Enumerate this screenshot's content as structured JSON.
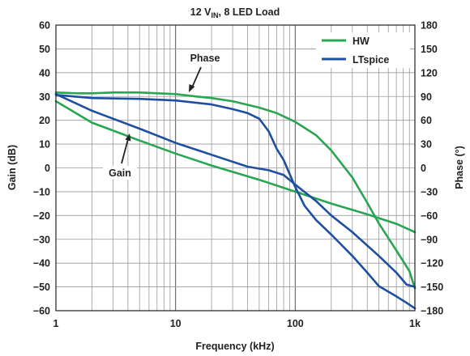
{
  "chart_data": {
    "type": "line",
    "title": "12 VIN, 8 LED Load",
    "title_parts": {
      "main": "12 V",
      "sub": "IN",
      "rest": ", 8 LED Load"
    },
    "xlabel": "Frequency (kHz)",
    "ylabel_left": "Gain (dB)",
    "ylabel_right": "Phase (°)",
    "x_scale": "log",
    "xlim": [
      1,
      1000
    ],
    "ylim_left": [
      -60,
      60
    ],
    "ylim_right": [
      -180,
      180
    ],
    "x_ticks": [
      {
        "value": 1,
        "label": "1"
      },
      {
        "value": 10,
        "label": "10"
      },
      {
        "value": 100,
        "label": "100"
      },
      {
        "value": 1000,
        "label": "1k"
      }
    ],
    "y_ticks_left": [
      "60",
      "50",
      "40",
      "30",
      "20",
      "10",
      "0",
      "−10",
      "−20",
      "−30",
      "−40",
      "−50",
      "−60"
    ],
    "y_tick_values_left": [
      60,
      50,
      40,
      30,
      20,
      10,
      0,
      -10,
      -20,
      -30,
      -40,
      -50,
      -60
    ],
    "y_ticks_right": [
      "180",
      "150",
      "120",
      "90",
      "60",
      "30",
      "0",
      "−30",
      "−60",
      "−90",
      "−120",
      "−150",
      "−180"
    ],
    "y_tick_values_right": [
      180,
      150,
      120,
      90,
      60,
      30,
      0,
      -30,
      -60,
      -90,
      -120,
      -150,
      -180
    ],
    "grid": true,
    "legend": {
      "placement": "top-right",
      "entries": [
        "HW",
        "LTspice"
      ]
    },
    "colors": {
      "HW": "#2aa552",
      "LTspice": "#1f4fa0"
    },
    "annotations": [
      {
        "text": "Phase",
        "target_series": "Phase",
        "x": 12,
        "y_left": 32
      },
      {
        "text": "Gain",
        "target_series": "Gain",
        "x": 3.8,
        "y_left": 12
      }
    ],
    "series": [
      {
        "name": "HW",
        "quantity": "Gain",
        "axis": "left",
        "points": [
          [
            1,
            28
          ],
          [
            2,
            19
          ],
          [
            5,
            11.5
          ],
          [
            10,
            6
          ],
          [
            20,
            1
          ],
          [
            50,
            -5
          ],
          [
            100,
            -10
          ],
          [
            200,
            -15
          ],
          [
            400,
            -19.5
          ],
          [
            700,
            -23.5
          ],
          [
            1000,
            -27
          ]
        ]
      },
      {
        "name": "HW",
        "quantity": "Phase",
        "axis": "right",
        "points": [
          [
            1,
            95
          ],
          [
            1.5,
            94
          ],
          [
            2,
            94
          ],
          [
            3,
            95
          ],
          [
            5,
            95
          ],
          [
            10,
            93
          ],
          [
            15,
            90
          ],
          [
            20,
            88
          ],
          [
            30,
            84
          ],
          [
            50,
            76
          ],
          [
            70,
            69
          ],
          [
            100,
            58
          ],
          [
            150,
            41
          ],
          [
            200,
            22
          ],
          [
            300,
            -12
          ],
          [
            400,
            -44
          ],
          [
            500,
            -70
          ],
          [
            700,
            -104
          ],
          [
            900,
            -130
          ],
          [
            1000,
            -152
          ]
        ]
      },
      {
        "name": "LTspice",
        "quantity": "Gain",
        "axis": "left",
        "points": [
          [
            1,
            31
          ],
          [
            2,
            24
          ],
          [
            5,
            16.5
          ],
          [
            10,
            10.5
          ],
          [
            20,
            5.5
          ],
          [
            40,
            0.5
          ],
          [
            60,
            -1
          ],
          [
            80,
            -3
          ],
          [
            100,
            -7
          ],
          [
            150,
            -14
          ],
          [
            200,
            -20
          ],
          [
            300,
            -27
          ],
          [
            500,
            -37
          ],
          [
            700,
            -44
          ],
          [
            850,
            -49
          ],
          [
            1000,
            -50
          ]
        ]
      },
      {
        "name": "LTspice",
        "quantity": "Phase",
        "axis": "right",
        "points": [
          [
            1,
            92
          ],
          [
            2,
            88
          ],
          [
            5,
            87
          ],
          [
            10,
            85
          ],
          [
            20,
            80
          ],
          [
            30,
            74
          ],
          [
            40,
            69
          ],
          [
            50,
            62
          ],
          [
            60,
            46
          ],
          [
            70,
            24
          ],
          [
            80,
            10
          ],
          [
            100,
            -24
          ],
          [
            120,
            -48
          ],
          [
            150,
            -66
          ],
          [
            200,
            -84
          ],
          [
            300,
            -111
          ],
          [
            400,
            -132
          ],
          [
            500,
            -149
          ],
          [
            700,
            -162
          ],
          [
            850,
            -170
          ],
          [
            1000,
            -177
          ]
        ]
      }
    ]
  }
}
